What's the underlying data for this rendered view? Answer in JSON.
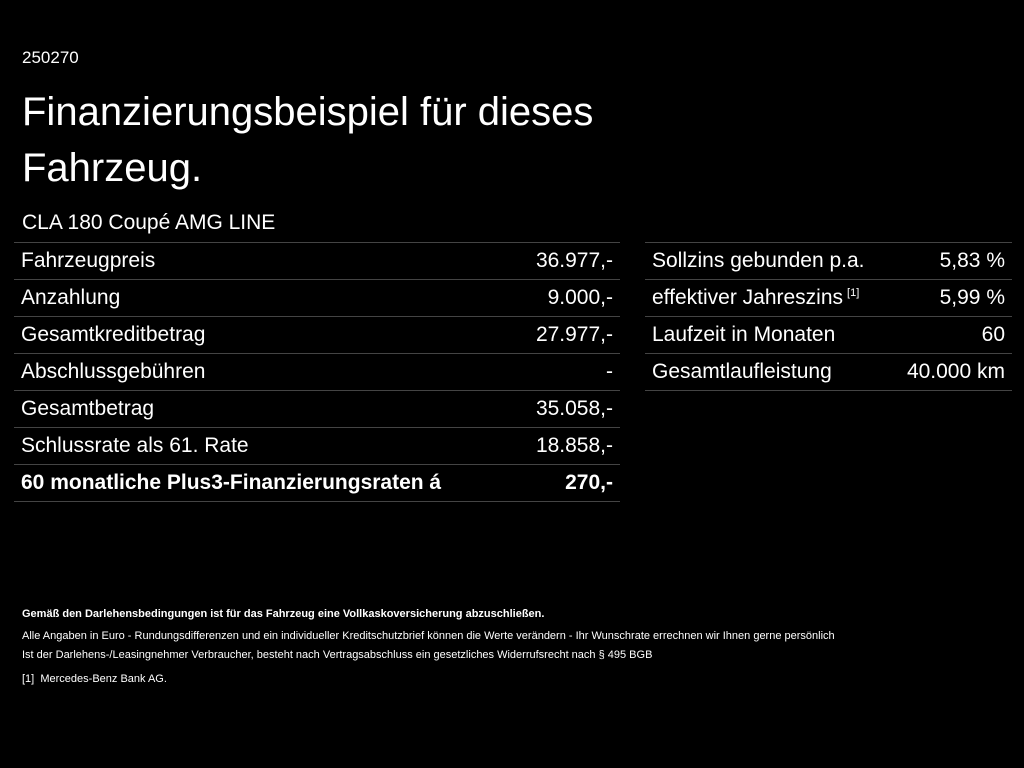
{
  "header": {
    "code": "250270",
    "title": "Finanzierungsbeispiel für dieses Fahrzeug.",
    "model": "CLA 180 Coupé AMG LINE"
  },
  "left_table": {
    "rows": [
      {
        "label": "Fahrzeugpreis",
        "value": "36.977,-"
      },
      {
        "label": "Anzahlung",
        "value": "9.000,-"
      },
      {
        "label": "Gesamtkreditbetrag",
        "value": "27.977,-"
      },
      {
        "label": "Abschlussgebühren",
        "value": "-"
      },
      {
        "label": "Gesamtbetrag",
        "value": "35.058,-"
      },
      {
        "label": "Schlussrate als 61. Rate",
        "value": "18.858,-"
      },
      {
        "label": "60 monatliche Plus3-Finanzierungsraten á",
        "value": "270,-",
        "bold": true
      }
    ]
  },
  "right_table": {
    "rows": [
      {
        "label": "Sollzins gebunden p.a.",
        "value": "5,83 %"
      },
      {
        "label": "effektiver Jahreszins",
        "sup": "[1]",
        "value": "5,99 %"
      },
      {
        "label": "Laufzeit in Monaten",
        "value": "60"
      },
      {
        "label": "Gesamtlaufleistung",
        "value": "40.000 km"
      }
    ]
  },
  "footer": {
    "notice": "Gemäß den Darlehensbedingungen ist für das Fahrzeug eine Vollkaskoversicherung abzuschließen.",
    "lines": [
      "Alle Angaben in Euro - Rundungsdifferenzen und ein individueller Kreditschutzbrief können die Werte verändern - Ihr Wunschrate errechnen wir Ihnen gerne persönlich",
      "Ist der Darlehens-/Leasingnehmer Verbraucher, besteht nach Vertragsabschluss ein gesetzliches Widerrufsrecht nach § 495 BGB"
    ],
    "footnote": {
      "marker": "[1]",
      "text": "Mercedes-Benz Bank AG."
    }
  }
}
